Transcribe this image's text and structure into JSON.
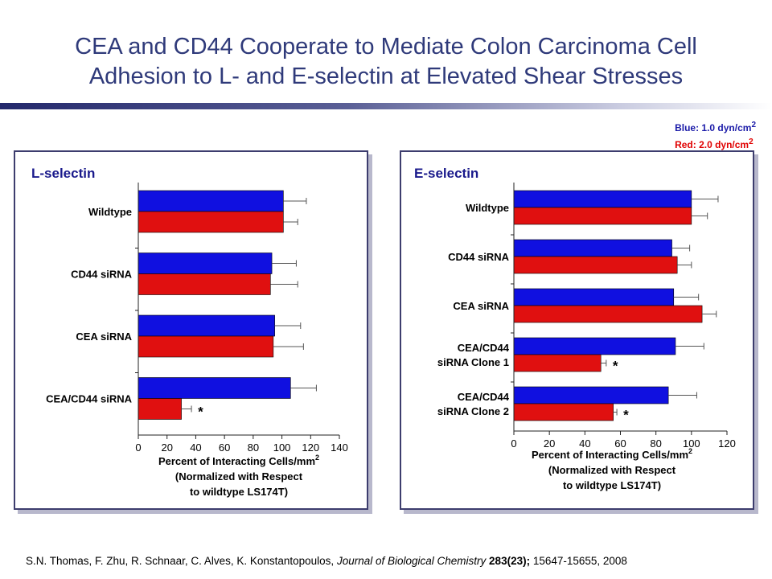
{
  "slide": {
    "title_line1": "CEA and CD44 Cooperate to Mediate Colon Carcinoma Cell",
    "title_line2": "Adhesion to L- and E-selectin at Elevated Shear Stresses",
    "legend_blue_label": "Blue:",
    "legend_blue_value": "1.0 dyn/cm",
    "legend_red_label": "Red:",
    "legend_red_value": "2.0 dyn/cm",
    "legend_superscript": "2",
    "footer_authors": "S.N. Thomas, F. Zhu, R. Schnaar, C. Alves, K. Konstantopoulos, ",
    "footer_journal": "Journal of Biological Chemistry",
    "footer_volume": " 283(23);",
    "footer_pages": " 15647-15655, 2008"
  },
  "colors": {
    "blue": "#1010e0",
    "red": "#e01010",
    "axis": "#222222",
    "error_bar": "#555555"
  },
  "chart_data": [
    {
      "type": "bar",
      "orientation": "horizontal",
      "title": "L-selectin",
      "categories": [
        [
          "Wildtype"
        ],
        [
          "CD44 siRNA"
        ],
        [
          "CEA siRNA"
        ],
        [
          "CEA/CD44 siRNA"
        ]
      ],
      "series": [
        {
          "name": "1.0 dyn/cm2",
          "color": "blue",
          "values": [
            101,
            93,
            95,
            106
          ],
          "errors": [
            16,
            17,
            18,
            18
          ]
        },
        {
          "name": "2.0 dyn/cm2",
          "color": "red",
          "values": [
            101,
            92,
            94,
            30
          ],
          "errors": [
            10,
            19,
            21,
            7
          ]
        }
      ],
      "significance": [
        null,
        null,
        null,
        "*"
      ],
      "xlim": [
        0,
        140
      ],
      "xticks": [
        0,
        20,
        40,
        60,
        80,
        100,
        120,
        140
      ],
      "xlabel_lines": [
        "Percent of Interacting Cells/mm",
        "(Normalized with Respect",
        "to wildtype LS174T)"
      ],
      "xlabel_superscript": "2"
    },
    {
      "type": "bar",
      "orientation": "horizontal",
      "title": "E-selectin",
      "categories": [
        [
          "Wildtype"
        ],
        [
          "CD44 siRNA"
        ],
        [
          "CEA siRNA"
        ],
        [
          "CEA/CD44",
          "siRNA Clone 1"
        ],
        [
          "CEA/CD44",
          "siRNA Clone 2"
        ]
      ],
      "series": [
        {
          "name": "1.0 dyn/cm2",
          "color": "blue",
          "values": [
            100,
            89,
            90,
            91,
            87
          ],
          "errors": [
            15,
            10,
            14,
            16,
            16
          ]
        },
        {
          "name": "2.0 dyn/cm2",
          "color": "red",
          "values": [
            100,
            92,
            106,
            49,
            56
          ],
          "errors": [
            9,
            8,
            8,
            3,
            2
          ]
        }
      ],
      "significance": [
        null,
        null,
        null,
        "*",
        "*"
      ],
      "xlim": [
        0,
        120
      ],
      "xticks": [
        0,
        20,
        40,
        60,
        80,
        100,
        120
      ],
      "xlabel_lines": [
        "Percent of Interacting Cells/mm",
        "(Normalized with Respect",
        "to wildtype LS174T)"
      ],
      "xlabel_superscript": "2"
    }
  ]
}
